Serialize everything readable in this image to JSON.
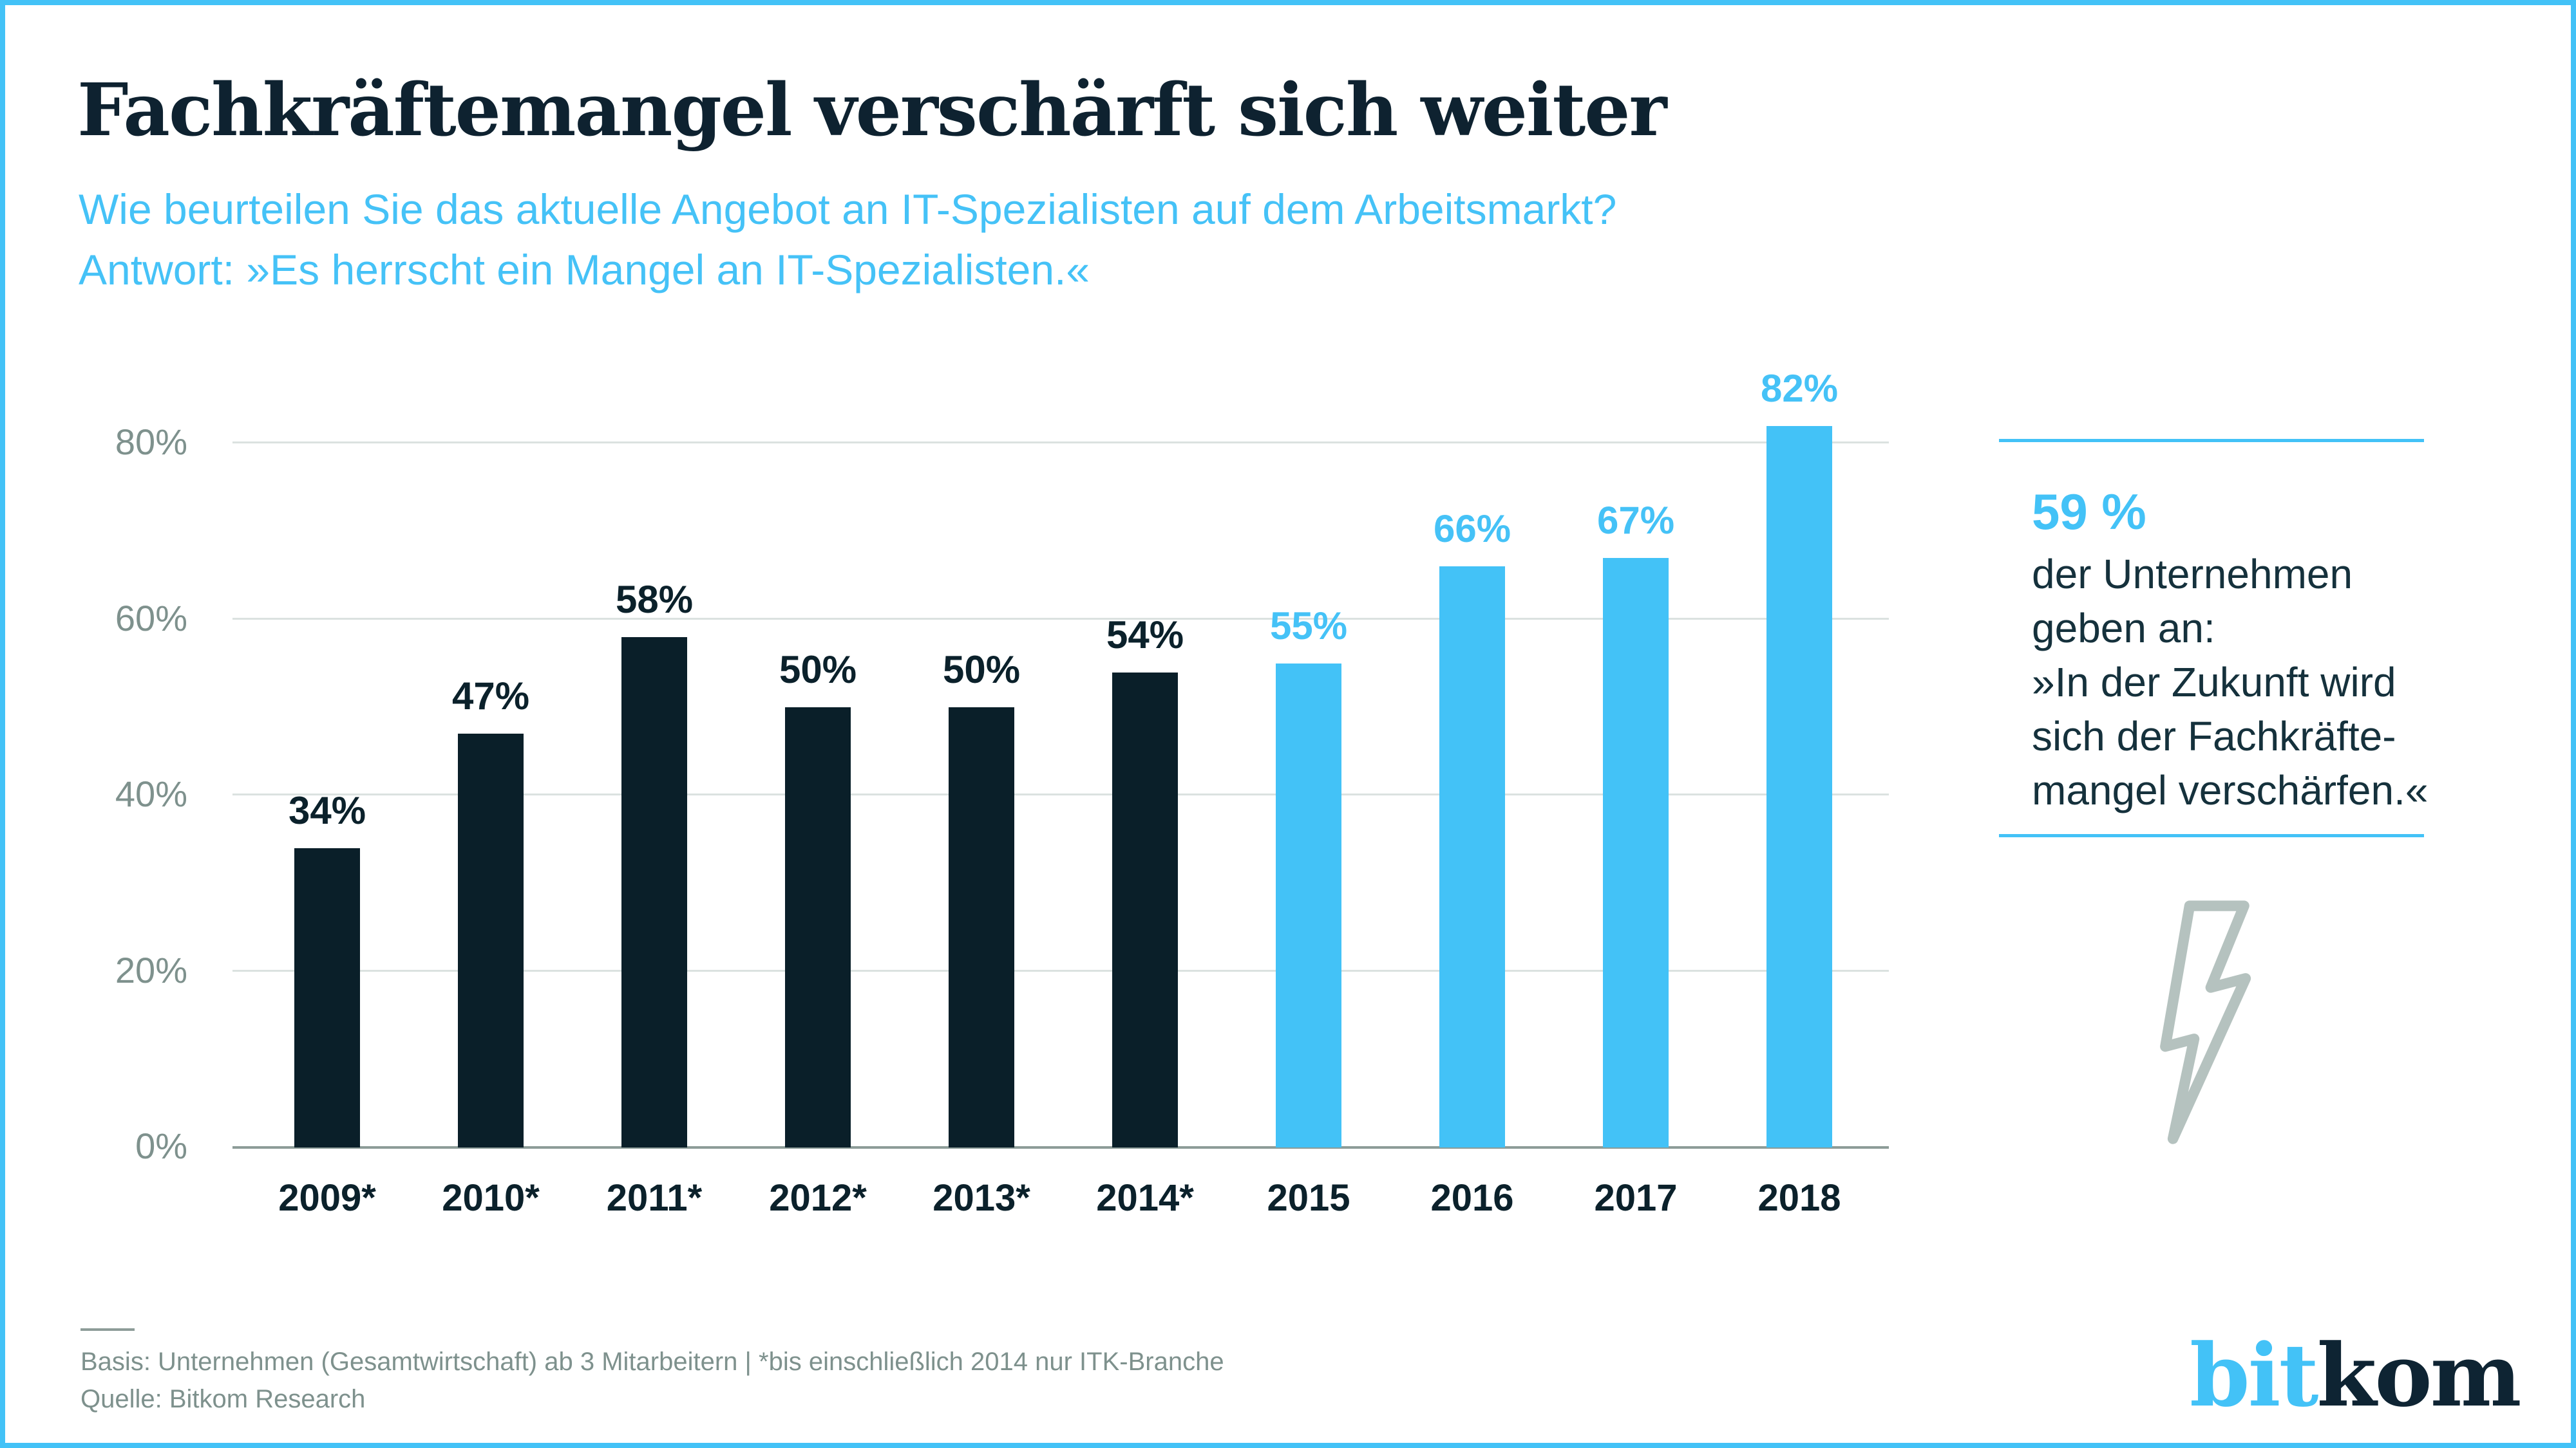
{
  "header": {
    "title": "Fachkräftemangel verschärft sich weiter",
    "subtitle_line1": "Wie beurteilen Sie das aktuelle Angebot an IT-Spezialisten auf dem Arbeitsmarkt?",
    "subtitle_line2": "Antwort: »Es herrscht ein Mangel an IT-Spezialisten.«"
  },
  "chart_data": {
    "type": "bar",
    "categories": [
      "2009*",
      "2010*",
      "2011*",
      "2012*",
      "2013*",
      "2014*",
      "2015",
      "2016",
      "2017",
      "2018"
    ],
    "values": [
      34,
      47,
      58,
      50,
      50,
      54,
      55,
      66,
      67,
      82
    ],
    "value_labels": [
      "34%",
      "47%",
      "58%",
      "50%",
      "50%",
      "54%",
      "55%",
      "66%",
      "67%",
      "82%"
    ],
    "bar_colors": [
      "dark",
      "dark",
      "dark",
      "dark",
      "dark",
      "dark",
      "blue",
      "blue",
      "blue",
      "blue"
    ],
    "y_ticks": [
      0,
      20,
      40,
      60,
      80
    ],
    "y_tick_labels": [
      "0%",
      "20%",
      "40%",
      "60%",
      "80%"
    ],
    "ylim": [
      0,
      86
    ],
    "grid": true,
    "legend": "none",
    "colors": {
      "dark": "#0a1f29",
      "blue": "#43c2f7"
    },
    "label_colors": {
      "dark": "#0b212b",
      "blue": "#45c2f7"
    }
  },
  "sidebar": {
    "stat": "59 %",
    "lines": [
      "der Unternehmen",
      "geben an:",
      "»In der Zukunft wird",
      "sich der Fachkräfte-",
      "mangel verschärfen.«"
    ],
    "icon": "lightning-bolt-icon"
  },
  "footer": {
    "basis": "Basis: Unternehmen (Gesamtwirtschaft) ab 3 Mitarbeitern | *bis einschließlich 2014 nur ITK-Branche",
    "quelle": "Quelle: Bitkom Research"
  },
  "logo": {
    "part1": "bit",
    "part2": "kom"
  }
}
